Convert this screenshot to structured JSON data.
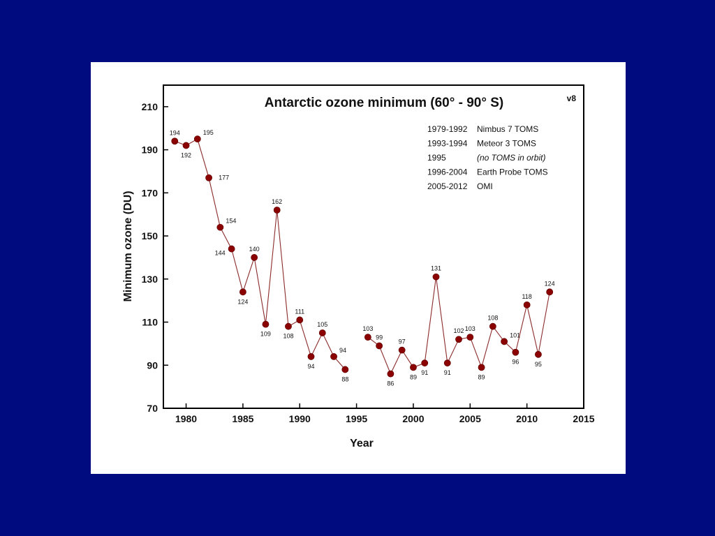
{
  "chart_data": {
    "type": "line",
    "title": "Antarctic ozone minimum (60° - 90° S)",
    "version_tag": "v8",
    "xlabel": "Year",
    "ylabel": "Minimum ozone (DU)",
    "xlim": [
      1978,
      2015
    ],
    "ylim": [
      70,
      220
    ],
    "xticks": [
      1980,
      1985,
      1990,
      1995,
      2000,
      2005,
      2010,
      2015
    ],
    "yticks": [
      70,
      90,
      110,
      130,
      150,
      170,
      190,
      210
    ],
    "grid": false,
    "legend_position": "top-right",
    "marker_color": "#8b0000",
    "line_color": "#8b2a2a",
    "legend": [
      {
        "years": "1979-1992",
        "instrument": "Nimbus 7 TOMS",
        "italic": false
      },
      {
        "years": "1993-1994",
        "instrument": "Meteor 3 TOMS",
        "italic": false
      },
      {
        "years": "1995",
        "instrument": "(no TOMS in orbit)",
        "italic": true
      },
      {
        "years": "1996-2004",
        "instrument": "Earth Probe TOMS",
        "italic": false
      },
      {
        "years": "2005-2012",
        "instrument": "OMI",
        "italic": false
      }
    ],
    "segments": [
      [
        {
          "x": 1979,
          "y": 194,
          "label": "194",
          "pos": "above"
        },
        {
          "x": 1980,
          "y": 192,
          "label": "192",
          "pos": "below"
        },
        {
          "x": 1981,
          "y": 195,
          "label": "195",
          "pos": "above-right"
        },
        {
          "x": 1982,
          "y": 177,
          "label": "177",
          "pos": "right"
        },
        {
          "x": 1983,
          "y": 154,
          "label": "154",
          "pos": "above-right"
        },
        {
          "x": 1984,
          "y": 144,
          "label": "144",
          "pos": "below-left"
        },
        {
          "x": 1985,
          "y": 124,
          "label": "124",
          "pos": "below"
        },
        {
          "x": 1986,
          "y": 140,
          "label": "140",
          "pos": "above"
        },
        {
          "x": 1987,
          "y": 109,
          "label": "109",
          "pos": "below"
        },
        {
          "x": 1988,
          "y": 162,
          "label": "162",
          "pos": "above"
        },
        {
          "x": 1989,
          "y": 108,
          "label": "108",
          "pos": "below"
        },
        {
          "x": 1990,
          "y": 111,
          "label": "111",
          "pos": "above"
        },
        {
          "x": 1991,
          "y": 94,
          "label": "94",
          "pos": "below"
        },
        {
          "x": 1992,
          "y": 105,
          "label": "105",
          "pos": "above"
        },
        {
          "x": 1993,
          "y": 94,
          "label": "94",
          "pos": "above-right"
        },
        {
          "x": 1994,
          "y": 88,
          "label": "88",
          "pos": "below"
        }
      ],
      [
        {
          "x": 1996,
          "y": 103,
          "label": "103",
          "pos": "above"
        },
        {
          "x": 1997,
          "y": 99,
          "label": "99",
          "pos": "above"
        },
        {
          "x": 1998,
          "y": 86,
          "label": "86",
          "pos": "below"
        },
        {
          "x": 1999,
          "y": 97,
          "label": "97",
          "pos": "above"
        },
        {
          "x": 2000,
          "y": 89,
          "label": "89",
          "pos": "below"
        },
        {
          "x": 2001,
          "y": 91,
          "label": "91",
          "pos": "below"
        },
        {
          "x": 2002,
          "y": 131,
          "label": "131",
          "pos": "above"
        },
        {
          "x": 2003,
          "y": 91,
          "label": "91",
          "pos": "below"
        },
        {
          "x": 2004,
          "y": 102,
          "label": "102",
          "pos": "above"
        },
        {
          "x": 2005,
          "y": 103,
          "label": "103",
          "pos": "above"
        },
        {
          "x": 2006,
          "y": 89,
          "label": "89",
          "pos": "below"
        },
        {
          "x": 2007,
          "y": 108,
          "label": "108",
          "pos": "above"
        },
        {
          "x": 2008,
          "y": 101,
          "label": "101",
          "pos": "above-right"
        },
        {
          "x": 2009,
          "y": 96,
          "label": "96",
          "pos": "below"
        },
        {
          "x": 2010,
          "y": 118,
          "label": "118",
          "pos": "above"
        },
        {
          "x": 2011,
          "y": 95,
          "label": "95",
          "pos": "below"
        },
        {
          "x": 2012,
          "y": 124,
          "label": "124",
          "pos": "above"
        }
      ]
    ]
  }
}
